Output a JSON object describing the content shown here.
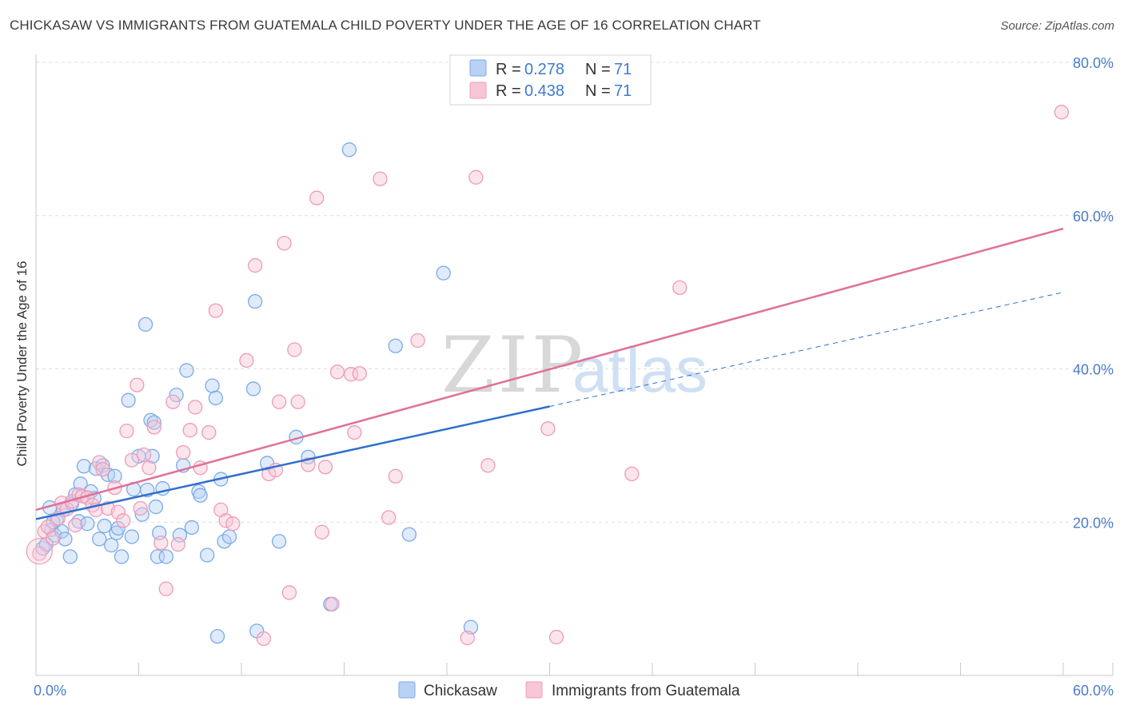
{
  "title": "CHICKASAW VS IMMIGRANTS FROM GUATEMALA CHILD POVERTY UNDER THE AGE OF 16 CORRELATION CHART",
  "source": "Source: ZipAtlas.com",
  "watermark": {
    "zip": "ZIP",
    "atlas": "atlas"
  },
  "chart_data": {
    "type": "scatter",
    "title": "CHICKASAW VS IMMIGRANTS FROM GUATEMALA CHILD POVERTY UNDER THE AGE OF 16 CORRELATION CHART",
    "xlabel": "",
    "ylabel": "Child Poverty Under the Age of 16",
    "xlim": [
      0,
      60
    ],
    "ylim": [
      0,
      80
    ],
    "x_tick_labels": [
      "0.0%",
      "60.0%"
    ],
    "y_ticks": [
      20,
      40,
      60,
      80
    ],
    "y_tick_labels": [
      "20.0%",
      "40.0%",
      "60.0%",
      "80.0%"
    ],
    "grid": true,
    "legend_position": "top-center",
    "legend": [
      {
        "r_label": "R =",
        "r_value": "0.278",
        "n_label": "N =",
        "n_value": "71"
      },
      {
        "r_label": "R =",
        "r_value": "0.438",
        "n_label": "N =",
        "n_value": "71"
      }
    ],
    "series": [
      {
        "name": "Chickasaw",
        "color": "#7aaae8",
        "fill": "#b9d2f3",
        "trend_color": "#2f6fcc",
        "trend": {
          "x0": 0,
          "y0": 20.4,
          "x1": 30,
          "y1": 35.1,
          "dash_x1": 60,
          "dash_y1": 50.0
        },
        "points": [
          [
            0.4,
            16.6
          ],
          [
            0.6,
            17.1
          ],
          [
            0.8,
            21.9
          ],
          [
            0.9,
            19.0
          ],
          [
            1.1,
            18.3
          ],
          [
            1.2,
            20.3
          ],
          [
            1.5,
            18.8
          ],
          [
            1.6,
            21.6
          ],
          [
            1.7,
            17.8
          ],
          [
            2.0,
            15.5
          ],
          [
            2.3,
            23.6
          ],
          [
            2.5,
            20.1
          ],
          [
            2.6,
            25.0
          ],
          [
            2.8,
            27.3
          ],
          [
            3.0,
            19.8
          ],
          [
            3.2,
            24.0
          ],
          [
            3.4,
            23.1
          ],
          [
            3.5,
            27.0
          ],
          [
            3.7,
            17.8
          ],
          [
            3.9,
            27.4
          ],
          [
            4.0,
            19.5
          ],
          [
            4.2,
            26.2
          ],
          [
            4.4,
            17.0
          ],
          [
            4.6,
            26.0
          ],
          [
            4.7,
            18.6
          ],
          [
            5.0,
            15.5
          ],
          [
            5.4,
            35.9
          ],
          [
            5.6,
            18.1
          ],
          [
            5.7,
            24.3
          ],
          [
            6.0,
            28.6
          ],
          [
            6.2,
            21.0
          ],
          [
            6.4,
            45.8
          ],
          [
            6.5,
            24.2
          ],
          [
            6.7,
            33.3
          ],
          [
            6.8,
            28.6
          ],
          [
            6.9,
            33.0
          ],
          [
            7.1,
            15.5
          ],
          [
            7.2,
            18.6
          ],
          [
            7.4,
            24.4
          ],
          [
            7.6,
            15.5
          ],
          [
            8.2,
            36.6
          ],
          [
            8.4,
            18.3
          ],
          [
            8.6,
            27.4
          ],
          [
            8.8,
            39.8
          ],
          [
            9.1,
            19.3
          ],
          [
            9.5,
            24.0
          ],
          [
            10.0,
            15.7
          ],
          [
            10.3,
            37.8
          ],
          [
            10.5,
            36.2
          ],
          [
            10.6,
            5.1
          ],
          [
            10.8,
            25.6
          ],
          [
            11.0,
            17.5
          ],
          [
            11.3,
            18.1
          ],
          [
            12.7,
            37.4
          ],
          [
            12.8,
            48.8
          ],
          [
            12.9,
            5.8
          ],
          [
            13.5,
            27.7
          ],
          [
            14.2,
            17.5
          ],
          [
            15.2,
            31.1
          ],
          [
            15.9,
            28.5
          ],
          [
            17.2,
            9.3
          ],
          [
            18.3,
            68.6
          ],
          [
            21.0,
            43.0
          ],
          [
            21.8,
            18.4
          ],
          [
            23.8,
            52.5
          ],
          [
            25.4,
            6.3
          ],
          [
            1.0,
            20.0
          ],
          [
            2.1,
            22.4
          ],
          [
            4.8,
            19.2
          ],
          [
            7.0,
            22.0
          ],
          [
            9.6,
            23.5
          ]
        ]
      },
      {
        "name": "Immigrants from Guatemala",
        "color": "#ef9ab7",
        "fill": "#f7c6d7",
        "trend_color": "#e07098",
        "trend": {
          "x0": 0,
          "y0": 21.6,
          "x1": 60,
          "y1": 58.3
        },
        "points": [
          [
            0.2,
            15.9
          ],
          [
            0.5,
            18.8
          ],
          [
            0.7,
            19.4
          ],
          [
            1.0,
            17.9
          ],
          [
            1.3,
            20.5
          ],
          [
            1.5,
            22.5
          ],
          [
            1.8,
            21.7
          ],
          [
            2.1,
            22.7
          ],
          [
            2.3,
            19.6
          ],
          [
            2.5,
            23.6
          ],
          [
            2.7,
            23.4
          ],
          [
            3.0,
            23.2
          ],
          [
            3.3,
            22.2
          ],
          [
            3.5,
            21.6
          ],
          [
            3.7,
            27.8
          ],
          [
            3.9,
            26.9
          ],
          [
            4.2,
            21.8
          ],
          [
            4.6,
            24.5
          ],
          [
            4.8,
            21.3
          ],
          [
            5.1,
            20.2
          ],
          [
            5.3,
            31.9
          ],
          [
            5.6,
            28.1
          ],
          [
            5.9,
            37.9
          ],
          [
            6.1,
            21.8
          ],
          [
            6.3,
            28.8
          ],
          [
            6.6,
            27.1
          ],
          [
            6.9,
            32.4
          ],
          [
            7.3,
            17.3
          ],
          [
            7.6,
            11.3
          ],
          [
            8.0,
            35.7
          ],
          [
            8.3,
            17.1
          ],
          [
            8.6,
            29.1
          ],
          [
            9.0,
            32.0
          ],
          [
            9.3,
            35.0
          ],
          [
            9.6,
            27.1
          ],
          [
            10.1,
            31.7
          ],
          [
            10.5,
            47.6
          ],
          [
            10.8,
            21.6
          ],
          [
            11.1,
            20.2
          ],
          [
            11.5,
            19.8
          ],
          [
            12.3,
            41.1
          ],
          [
            12.8,
            53.5
          ],
          [
            13.3,
            4.8
          ],
          [
            13.6,
            26.3
          ],
          [
            14.0,
            26.8
          ],
          [
            14.2,
            35.7
          ],
          [
            14.5,
            56.4
          ],
          [
            14.8,
            10.8
          ],
          [
            15.1,
            42.5
          ],
          [
            15.3,
            35.7
          ],
          [
            15.9,
            27.5
          ],
          [
            16.4,
            62.3
          ],
          [
            16.7,
            18.7
          ],
          [
            16.9,
            27.2
          ],
          [
            17.3,
            9.3
          ],
          [
            17.6,
            39.6
          ],
          [
            18.4,
            39.3
          ],
          [
            18.6,
            31.7
          ],
          [
            18.9,
            39.4
          ],
          [
            20.1,
            64.8
          ],
          [
            20.6,
            20.6
          ],
          [
            21.0,
            26.0
          ],
          [
            22.3,
            43.7
          ],
          [
            25.2,
            4.9
          ],
          [
            25.7,
            65.0
          ],
          [
            26.4,
            27.4
          ],
          [
            29.9,
            32.2
          ],
          [
            30.4,
            5.0
          ],
          [
            34.8,
            26.3
          ],
          [
            37.6,
            50.6
          ],
          [
            59.9,
            73.5
          ]
        ]
      }
    ]
  }
}
